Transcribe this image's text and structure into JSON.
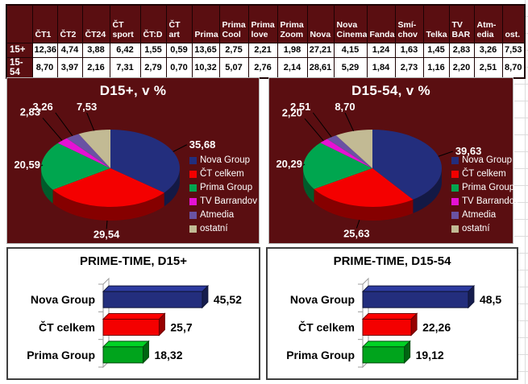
{
  "table": {
    "columns": [
      "ČT1",
      "ČT2",
      "ČT24",
      "ČT sport",
      "ČT:D",
      "ČT art",
      "Prima",
      "Prima Cool",
      "Prima love",
      "Prima Zoom",
      "Nova",
      "Nova Cinema",
      "Fanda",
      "Smí-chov",
      "Telka",
      "TV BAR",
      "Atm-edia",
      "ost."
    ],
    "rows": [
      {
        "label": "15+",
        "values": [
          "12,36",
          "4,74",
          "3,88",
          "6,42",
          "1,55",
          "0,59",
          "13,65",
          "2,75",
          "2,21",
          "1,98",
          "27,21",
          "4,15",
          "1,24",
          "1,63",
          "1,45",
          "2,83",
          "3,26",
          "7,53"
        ]
      },
      {
        "label": "15-54",
        "values": [
          "8,70",
          "3,97",
          "2,16",
          "7,31",
          "2,79",
          "0,70",
          "10,32",
          "5,07",
          "2,76",
          "2,14",
          "28,61",
          "5,29",
          "1,84",
          "2,73",
          "1,16",
          "2,20",
          "2,51",
          "8,70"
        ]
      }
    ]
  },
  "chart_data": [
    {
      "type": "pie",
      "title": "D15+, v %",
      "unit": "%",
      "labels": [
        "Nova Group",
        "ČT celkem",
        "Prima Group",
        "TV Barrandov",
        "Atmedia",
        "ostatní"
      ],
      "values": [
        35.68,
        29.54,
        20.59,
        2.83,
        3.26,
        7.53
      ],
      "value_labels": [
        "35,68",
        "29,54",
        "20,59",
        "2,83",
        "3,26",
        "7,53"
      ],
      "colors": [
        "#232E7D",
        "#F40000",
        "#00A64F",
        "#E512D4",
        "#6A52A3",
        "#C2BA94"
      ],
      "legend_position": "right",
      "start_angle": "12-oclock-clockwise",
      "style": "3d-pie"
    },
    {
      "type": "pie",
      "title": "D15-54, v %",
      "unit": "%",
      "labels": [
        "Nova Group",
        "ČT celkem",
        "Prima Group",
        "TV Barrandov",
        "Atmedia",
        "ostatní"
      ],
      "values": [
        39.63,
        25.63,
        20.29,
        2.2,
        2.51,
        8.7
      ],
      "value_labels": [
        "39,63",
        "25,63",
        "20,29",
        "2,20",
        "2,51",
        "8,70"
      ],
      "colors": [
        "#232E7D",
        "#F40000",
        "#00A64F",
        "#E512D4",
        "#6A52A3",
        "#C2BA94"
      ],
      "legend_position": "right",
      "start_angle": "12-oclock-clockwise",
      "style": "3d-pie"
    },
    {
      "type": "bar",
      "title": "PRIME-TIME, D15+",
      "orientation": "horizontal",
      "categories": [
        "Nova Group",
        "ČT celkem",
        "Prima Group"
      ],
      "values": [
        45.52,
        25.7,
        18.32
      ],
      "value_labels": [
        "45,52",
        "25,7",
        "18,32"
      ],
      "colors": [
        "#232E7D",
        "#F40000",
        "#00A41C"
      ],
      "style": "3d-bar",
      "grid": false
    },
    {
      "type": "bar",
      "title": "PRIME-TIME, D15-54",
      "orientation": "horizontal",
      "categories": [
        "Nova Group",
        "ČT celkem",
        "Prima Group"
      ],
      "values": [
        48.5,
        22.26,
        19.12
      ],
      "value_labels": [
        "48,5",
        "22,26",
        "19,12"
      ],
      "colors": [
        "#232E7D",
        "#F40000",
        "#00A41C"
      ],
      "style": "3d-bar",
      "grid": false
    }
  ],
  "ui": {
    "panel_background": "#5A0E11",
    "table_header_background": "#5A0E11",
    "table_grid_color": "#1D0304",
    "pie_panel_border": "#B5B5B5",
    "bar_panel_border": "#3F3F3F",
    "text_on_dark": "#FFFFFF",
    "text_on_light": "#000000",
    "gridline_color": "#DCDCDC"
  }
}
